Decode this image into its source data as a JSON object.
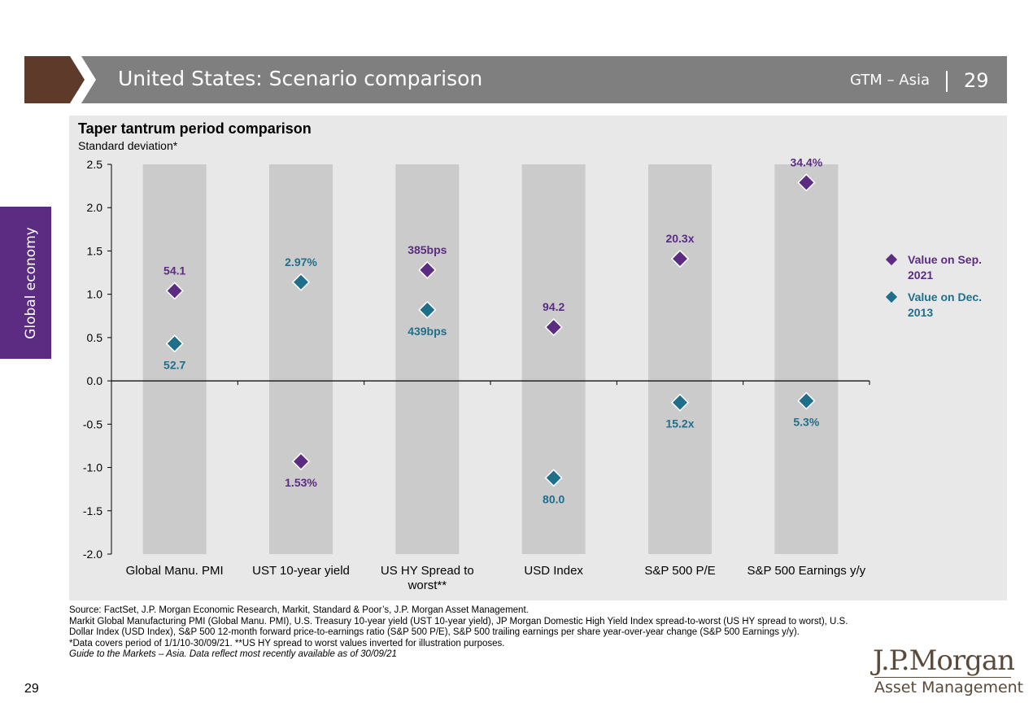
{
  "header": {
    "title": "United States: Scenario comparison",
    "series_label": "GTM – Asia",
    "page_number": "29",
    "colors": {
      "arrow": "#5e3a2b",
      "bar": "#7f7f7f"
    }
  },
  "side_tab": {
    "label": "Global economy",
    "color": "#5b2c82"
  },
  "chart_data": {
    "type": "scatter",
    "title": "Taper tantrum period comparison",
    "subtitle": "Standard deviation*",
    "categories": [
      "Global Manu. PMI",
      "UST 10-year yield",
      "US HY Spread to worst**",
      "USD Index",
      "S&P 500 P/E",
      "S&P 500 Earnings y/y"
    ],
    "ylim": [
      -2.0,
      2.5
    ],
    "yticks": [
      "2.5",
      "2.0",
      "1.5",
      "1.0",
      "0.5",
      "0.0",
      "-0.5",
      "-1.0",
      "-1.5",
      "-2.0"
    ],
    "ytick_values": [
      2.5,
      2.0,
      1.5,
      1.0,
      0.5,
      0.0,
      -0.5,
      -1.0,
      -1.5,
      -2.0
    ],
    "series": [
      {
        "name": "Value on Sep. 2021",
        "color": "#5b2c82",
        "values": [
          1.04,
          -0.93,
          1.28,
          0.62,
          1.41,
          2.29
        ],
        "labels": [
          "54.1",
          "1.53%",
          "385bps",
          "94.2",
          "20.3x",
          "34.4%"
        ]
      },
      {
        "name": "Value on Dec. 2013",
        "color": "#1f6f8b",
        "values": [
          0.43,
          1.14,
          0.82,
          -1.12,
          -0.25,
          -0.23
        ],
        "labels": [
          "52.7",
          "2.97%",
          "439bps",
          "80.0",
          "15.2x",
          "5.3%"
        ]
      }
    ],
    "legend_position": "right",
    "column_shading": "#cbcbcb"
  },
  "legend": {
    "items": [
      {
        "label_line1": "Value on Sep.",
        "label_line2": "2021",
        "color": "#5b2c82"
      },
      {
        "label_line1": "Value on Dec.",
        "label_line2": "2013",
        "color": "#1f6f8b"
      }
    ]
  },
  "footnotes": {
    "line1": "Source: FactSet, J.P. Morgan Economic Research, Markit, Standard & Poor’s, J.P. Morgan Asset Management.",
    "line2": "Markit Global Manufacturing PMI (Global Manu. PMI), U.S. Treasury 10-year yield (UST 10-year yield), JP Morgan Domestic High Yield Index spread-to-worst (US HY spread to worst), U.S. Dollar Index (USD Index), S&P 500 12-month forward price-to-earnings ratio (S&P 500 P/E), S&P 500 trailing earnings per share year-over-year change (S&P 500 Earnings y/y).",
    "line3": "*Data covers period of 1/1/10-30/09/21. **US HY spread to worst values inverted for illustration purposes.",
    "line4": "Guide to the Markets – Asia. Data reflect most recently available as of 30/09/21"
  },
  "footer": {
    "page_number": "29",
    "logo_line1": "J.P.Morgan",
    "logo_line2": "Asset Management"
  }
}
